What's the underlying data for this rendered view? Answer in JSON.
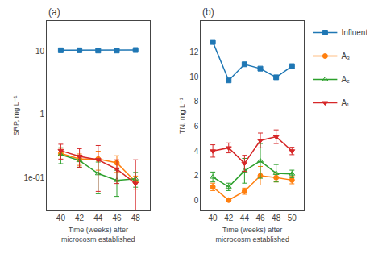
{
  "chart_data": [
    {
      "type": "line",
      "title": "(a)",
      "x_label": "Time (weeks) after microcosm established",
      "y_label": "SRP, mg L⁻¹",
      "x": [
        40,
        42,
        44,
        46,
        48
      ],
      "series": [
        {
          "name": "Influent",
          "marker": "square",
          "values": [
            10.3,
            10.3,
            10.2,
            10.2,
            10.4
          ],
          "errors": [
            0,
            0,
            0,
            0,
            0
          ]
        },
        {
          "name": "A₃",
          "marker": "circle",
          "values": [
            0.24,
            0.195,
            0.195,
            0.17,
            0.085
          ],
          "errors": [
            0.05,
            0.04,
            0.065,
            0.05,
            0.02
          ]
        },
        {
          "name": "A₂",
          "marker": "triangle-up-open",
          "values": [
            0.23,
            0.185,
            0.115,
            0.09,
            0.095
          ],
          "errors": [
            0.065,
            0.04,
            0.06,
            0.04,
            0.025
          ]
        },
        {
          "name": "A₁",
          "marker": "triangle-down",
          "values": [
            0.265,
            0.215,
            0.19,
            0.135,
            0.08
          ],
          "errors": [
            0.07,
            0.07,
            0.13,
            0.055,
            0.11
          ]
        }
      ],
      "log": "y",
      "xlim": [
        38.5,
        49.5
      ],
      "xticks": [
        40,
        42,
        44,
        46,
        48
      ],
      "ylim": [
        0.03,
        30
      ],
      "yticks": [
        {
          "value": 0.1,
          "label": "1e-01"
        },
        1,
        10
      ],
      "grid": false
    },
    {
      "type": "line",
      "title": "(b)",
      "x_label": "Time (weeks) after microcosm established",
      "y_label": "TN, mg L⁻¹",
      "x": [
        40,
        42,
        44,
        46,
        48,
        50
      ],
      "series": [
        {
          "name": "Influent",
          "marker": "square",
          "values": [
            12.8,
            9.7,
            11.0,
            10.65,
            9.95,
            10.85
          ],
          "errors": [
            0,
            0,
            0,
            0,
            0,
            0
          ]
        },
        {
          "name": "A₃",
          "marker": "circle",
          "values": [
            1.1,
            0.03,
            0.75,
            2.0,
            1.85,
            1.65
          ],
          "errors": [
            0.3,
            0.1,
            0.25,
            0.75,
            0.35,
            0.3
          ]
        },
        {
          "name": "A₂",
          "marker": "triangle-up-open",
          "values": [
            1.9,
            1.1,
            2.4,
            3.2,
            2.2,
            2.15
          ],
          "errors": [
            0.4,
            0.3,
            1.0,
            1.4,
            0.7,
            0.3
          ]
        },
        {
          "name": "A₁",
          "marker": "triangle-down",
          "values": [
            4.0,
            4.25,
            3.0,
            4.85,
            5.15,
            4.0
          ],
          "errors": [
            0.5,
            0.4,
            0.65,
            0.6,
            0.55,
            0.3
          ]
        }
      ],
      "xlim": [
        38.5,
        51.5
      ],
      "xticks": [
        40,
        42,
        44,
        46,
        48,
        50
      ],
      "ylim": [
        -0.8,
        14.5
      ],
      "yticks": [
        0,
        2,
        4,
        6,
        8,
        10,
        12
      ],
      "legend": "upper right",
      "grid": false
    }
  ]
}
